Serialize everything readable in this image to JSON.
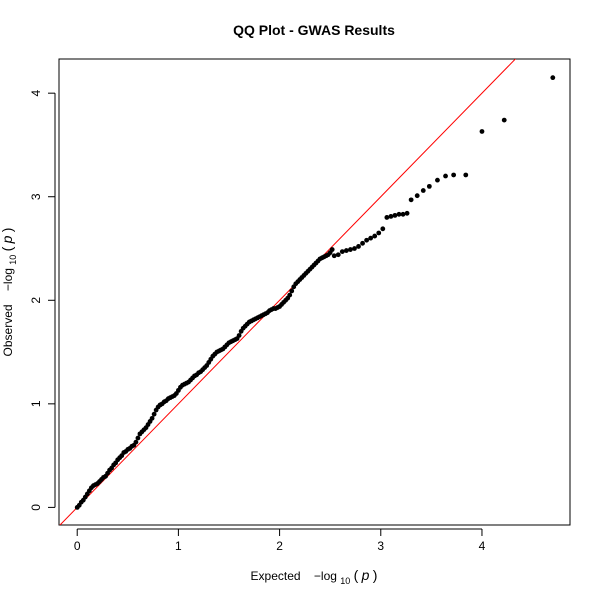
{
  "chart_data": {
    "type": "scatter",
    "title": "QQ Plot - GWAS Results",
    "xlabel": {
      "prefix": "Expected",
      "sign": "−log",
      "sub": "10",
      "paren_open": "(",
      "var": "p",
      "paren_close": ")"
    },
    "ylabel": {
      "prefix": "Observed",
      "sign": "−log",
      "sub": "10",
      "paren_open": "(",
      "var": "p",
      "paren_close": ")"
    },
    "xlim": [
      -0.18,
      4.87
    ],
    "ylim": [
      -0.17,
      4.33
    ],
    "x_ticks": [
      0,
      1,
      2,
      3,
      4
    ],
    "y_ticks": [
      0,
      1,
      2,
      3,
      4
    ],
    "x_tick_labels": [
      "0",
      "1",
      "2",
      "3",
      "4"
    ],
    "y_tick_labels": [
      "0",
      "1",
      "2",
      "3",
      "4"
    ],
    "reference_line": {
      "slope": 1,
      "intercept": 0,
      "color": "#ff0000"
    },
    "point_color": "#000000",
    "grid": false,
    "points": [
      [
        0.0,
        0.0
      ],
      [
        0.02,
        0.02
      ],
      [
        0.04,
        0.05
      ],
      [
        0.06,
        0.07
      ],
      [
        0.08,
        0.1
      ],
      [
        0.1,
        0.13
      ],
      [
        0.12,
        0.16
      ],
      [
        0.14,
        0.19
      ],
      [
        0.16,
        0.21
      ],
      [
        0.18,
        0.22
      ],
      [
        0.2,
        0.23
      ],
      [
        0.22,
        0.25
      ],
      [
        0.24,
        0.27
      ],
      [
        0.26,
        0.29
      ],
      [
        0.28,
        0.3
      ],
      [
        0.3,
        0.33
      ],
      [
        0.32,
        0.36
      ],
      [
        0.34,
        0.38
      ],
      [
        0.36,
        0.41
      ],
      [
        0.38,
        0.43
      ],
      [
        0.4,
        0.46
      ],
      [
        0.42,
        0.48
      ],
      [
        0.44,
        0.5
      ],
      [
        0.46,
        0.53
      ],
      [
        0.48,
        0.54
      ],
      [
        0.5,
        0.56
      ],
      [
        0.52,
        0.57
      ],
      [
        0.54,
        0.59
      ],
      [
        0.56,
        0.6
      ],
      [
        0.58,
        0.63
      ],
      [
        0.6,
        0.67
      ],
      [
        0.62,
        0.71
      ],
      [
        0.64,
        0.73
      ],
      [
        0.66,
        0.75
      ],
      [
        0.68,
        0.77
      ],
      [
        0.7,
        0.8
      ],
      [
        0.72,
        0.83
      ],
      [
        0.74,
        0.86
      ],
      [
        0.76,
        0.9
      ],
      [
        0.78,
        0.94
      ],
      [
        0.8,
        0.97
      ],
      [
        0.82,
        0.99
      ],
      [
        0.84,
        1.0
      ],
      [
        0.86,
        1.02
      ],
      [
        0.88,
        1.03
      ],
      [
        0.9,
        1.05
      ],
      [
        0.92,
        1.06
      ],
      [
        0.94,
        1.07
      ],
      [
        0.96,
        1.08
      ],
      [
        0.98,
        1.1
      ],
      [
        1.0,
        1.13
      ],
      [
        1.02,
        1.16
      ],
      [
        1.04,
        1.18
      ],
      [
        1.06,
        1.19
      ],
      [
        1.08,
        1.2
      ],
      [
        1.1,
        1.21
      ],
      [
        1.12,
        1.23
      ],
      [
        1.14,
        1.25
      ],
      [
        1.16,
        1.27
      ],
      [
        1.18,
        1.28
      ],
      [
        1.2,
        1.3
      ],
      [
        1.22,
        1.31
      ],
      [
        1.24,
        1.33
      ],
      [
        1.26,
        1.35
      ],
      [
        1.28,
        1.37
      ],
      [
        1.3,
        1.4
      ],
      [
        1.32,
        1.43
      ],
      [
        1.34,
        1.46
      ],
      [
        1.36,
        1.48
      ],
      [
        1.38,
        1.5
      ],
      [
        1.4,
        1.51
      ],
      [
        1.42,
        1.52
      ],
      [
        1.44,
        1.53
      ],
      [
        1.46,
        1.55
      ],
      [
        1.48,
        1.57
      ],
      [
        1.5,
        1.59
      ],
      [
        1.52,
        1.6
      ],
      [
        1.54,
        1.61
      ],
      [
        1.56,
        1.62
      ],
      [
        1.58,
        1.63
      ],
      [
        1.6,
        1.66
      ],
      [
        1.62,
        1.7
      ],
      [
        1.64,
        1.73
      ],
      [
        1.66,
        1.75
      ],
      [
        1.68,
        1.77
      ],
      [
        1.7,
        1.79
      ],
      [
        1.72,
        1.8
      ],
      [
        1.74,
        1.81
      ],
      [
        1.76,
        1.82
      ],
      [
        1.78,
        1.83
      ],
      [
        1.8,
        1.84
      ],
      [
        1.82,
        1.85
      ],
      [
        1.84,
        1.86
      ],
      [
        1.86,
        1.87
      ],
      [
        1.88,
        1.88
      ],
      [
        1.9,
        1.9
      ],
      [
        1.92,
        1.91
      ],
      [
        1.94,
        1.92
      ],
      [
        1.96,
        1.92
      ],
      [
        1.98,
        1.93
      ],
      [
        2.0,
        1.94
      ],
      [
        2.02,
        1.96
      ],
      [
        2.04,
        1.98
      ],
      [
        2.06,
        2.0
      ],
      [
        2.08,
        2.02
      ],
      [
        2.1,
        2.05
      ],
      [
        2.12,
        2.09
      ],
      [
        2.14,
        2.13
      ],
      [
        2.16,
        2.16
      ],
      [
        2.18,
        2.18
      ],
      [
        2.2,
        2.2
      ],
      [
        2.22,
        2.22
      ],
      [
        2.24,
        2.24
      ],
      [
        2.26,
        2.26
      ],
      [
        2.28,
        2.28
      ],
      [
        2.3,
        2.3
      ],
      [
        2.32,
        2.32
      ],
      [
        2.34,
        2.34
      ],
      [
        2.36,
        2.36
      ],
      [
        2.38,
        2.38
      ],
      [
        2.4,
        2.4
      ],
      [
        2.42,
        2.41
      ],
      [
        2.44,
        2.42
      ],
      [
        2.46,
        2.43
      ],
      [
        2.48,
        2.44
      ],
      [
        2.5,
        2.46
      ],
      [
        2.52,
        2.49
      ],
      [
        2.54,
        2.43
      ],
      [
        2.58,
        2.44
      ],
      [
        2.62,
        2.47
      ],
      [
        2.66,
        2.48
      ],
      [
        2.7,
        2.49
      ],
      [
        2.74,
        2.5
      ],
      [
        2.78,
        2.52
      ],
      [
        2.82,
        2.55
      ],
      [
        2.86,
        2.58
      ],
      [
        2.9,
        2.6
      ],
      [
        2.94,
        2.62
      ],
      [
        2.98,
        2.65
      ],
      [
        3.02,
        2.69
      ],
      [
        3.06,
        2.8
      ],
      [
        3.1,
        2.81
      ],
      [
        3.14,
        2.82
      ],
      [
        3.18,
        2.83
      ],
      [
        3.22,
        2.83
      ],
      [
        3.26,
        2.84
      ],
      [
        3.3,
        2.97
      ],
      [
        3.36,
        3.01
      ],
      [
        3.42,
        3.06
      ],
      [
        3.48,
        3.1
      ],
      [
        3.56,
        3.16
      ],
      [
        3.64,
        3.2
      ],
      [
        3.72,
        3.21
      ],
      [
        3.84,
        3.21
      ],
      [
        4.0,
        3.63
      ],
      [
        4.22,
        3.74
      ],
      [
        4.7,
        4.15
      ]
    ]
  }
}
